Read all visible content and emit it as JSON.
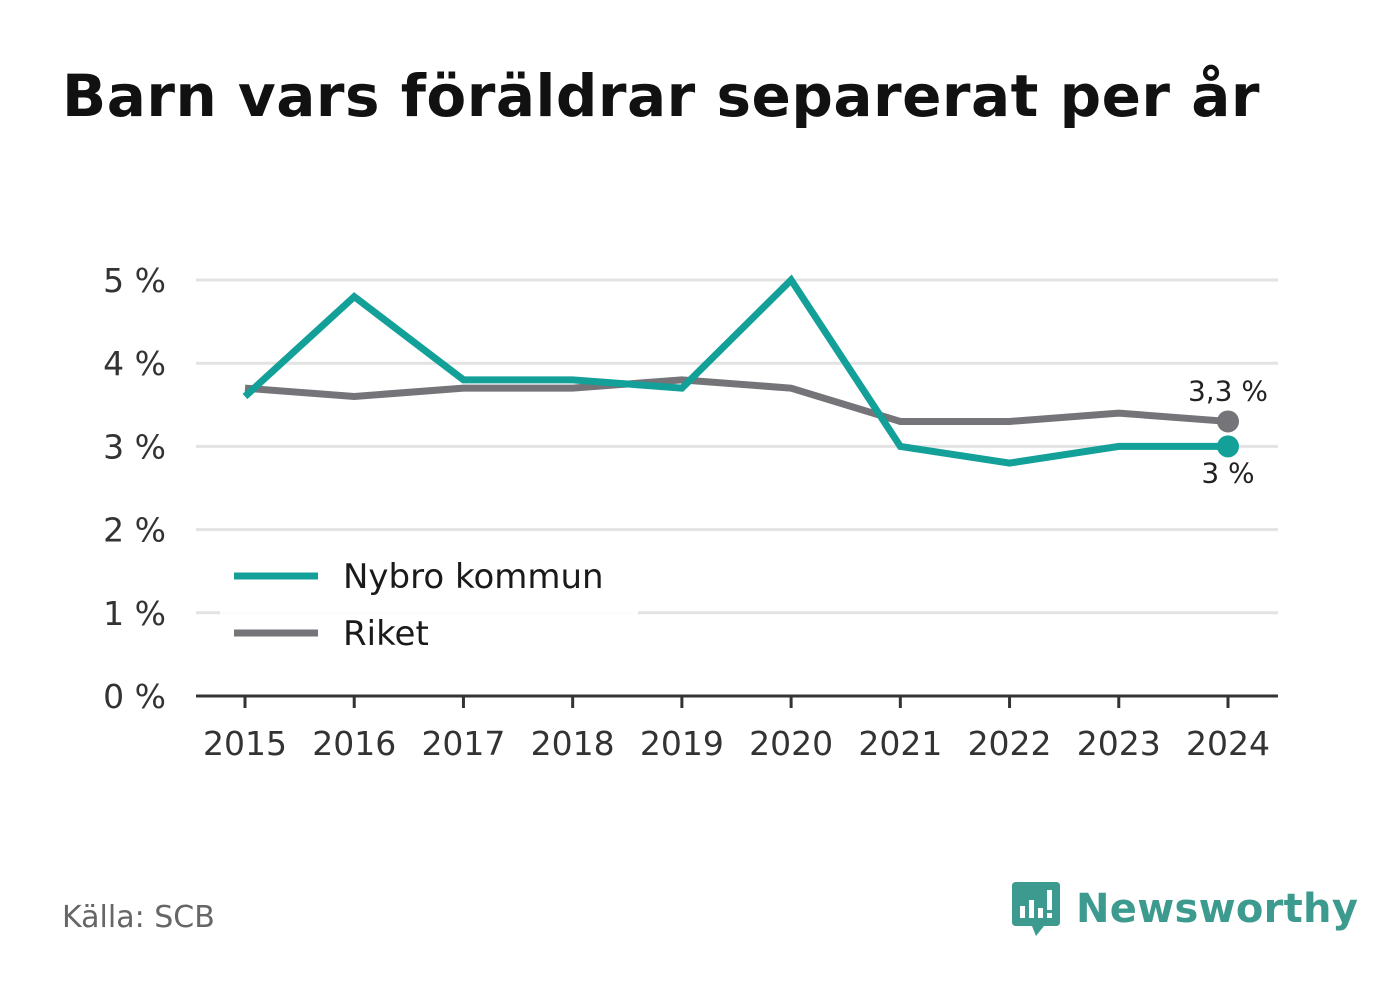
{
  "title": "Barn vars föräldrar separerat per år",
  "source": "Källa: SCB",
  "brand": {
    "name": "Newsworthy",
    "icon": "newsworthy-logo-icon",
    "color": "#3c9a8e"
  },
  "chart_data": {
    "type": "line",
    "title": "Barn vars föräldrar separerat per år",
    "xlabel": "",
    "ylabel": "",
    "x": [
      2015,
      2016,
      2017,
      2018,
      2019,
      2020,
      2021,
      2022,
      2023,
      2024
    ],
    "ylim": [
      0,
      5
    ],
    "y_ticks": [
      0,
      1,
      2,
      3,
      4,
      5
    ],
    "y_tick_labels": [
      "0 %",
      "1 %",
      "2 %",
      "3 %",
      "4 %",
      "5 %"
    ],
    "grid": true,
    "legend_position": "bottom-left",
    "series": [
      {
        "name": "Nybro kommun",
        "color": "#13a098",
        "values": [
          3.6,
          4.8,
          3.8,
          3.8,
          3.7,
          5.0,
          3.0,
          2.8,
          3.0,
          3.0
        ],
        "end_label": "3 %"
      },
      {
        "name": "Riket",
        "color": "#747479",
        "values": [
          3.7,
          3.6,
          3.7,
          3.7,
          3.8,
          3.7,
          3.3,
          3.3,
          3.4,
          3.3
        ],
        "end_label": "3,3 %"
      }
    ]
  }
}
